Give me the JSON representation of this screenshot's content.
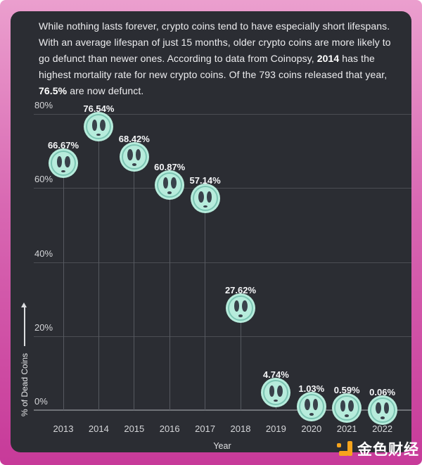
{
  "intro": {
    "part1": "While nothing lasts forever, crypto coins tend to have especially short lifespans. With an average lifespan of just 15 months, older crypto coins are more likely to go defunct than newer ones. According to data from Coinopsy, ",
    "bold1": "2014",
    "part2": " has the highest mortality rate for new crypto coins. Of the 793 coins released that year, ",
    "bold2": "76.5%",
    "part3": " are now defunct."
  },
  "chart_data": {
    "type": "scatter",
    "subtype": "lollipop",
    "x": [
      "2013",
      "2014",
      "2015",
      "2016",
      "2017",
      "2018",
      "2019",
      "2020",
      "2021",
      "2022"
    ],
    "values": [
      66.67,
      76.54,
      68.42,
      60.87,
      57.14,
      27.62,
      4.74,
      1.03,
      0.59,
      0.06
    ],
    "point_labels": [
      "66.67%",
      "76.54%",
      "68.42%",
      "60.87%",
      "57.14%",
      "27.62%",
      "4.74%",
      "1.03%",
      "0.59%",
      "0.06%"
    ],
    "xlabel": "Year",
    "ylabel": "% of Dead Coins",
    "ytick_values": [
      0,
      20,
      40,
      60,
      80
    ],
    "ytick_labels": [
      "0%",
      "20%",
      "40%",
      "60%",
      "80%"
    ],
    "ylim": [
      0,
      85
    ],
    "grid": true,
    "legend": "none",
    "marker": "dead-coin-face",
    "marker_color": "#b7ecdc"
  },
  "branding": {
    "logo_text": "金色财经",
    "logo_icon": "jinse-orange-j-blocks",
    "logo_color": "#f7a41c"
  },
  "theme": {
    "frame_gradient_top": "#eb9fce",
    "frame_gradient_bottom": "#c73a99",
    "panel_bg": "#2b2d33",
    "text_color": "#ededef",
    "gridline_color": "#4b4e54",
    "coin_fill": "#b7ecdc",
    "coin_ring": "#7cc5b3",
    "coin_face": "#39424b"
  }
}
